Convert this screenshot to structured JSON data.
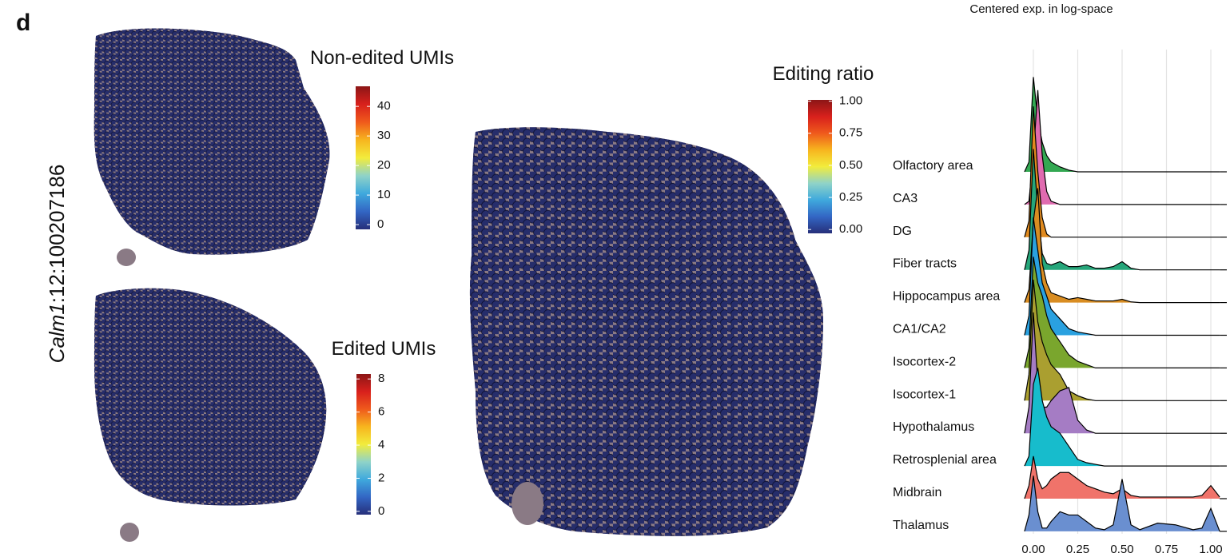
{
  "panel_label": "d",
  "y_label": {
    "gene": "Calm1",
    "locus": ":12:100207186"
  },
  "colormap": [
    "#262f7a",
    "#3366c4",
    "#3fa9dd",
    "#8fd3c8",
    "#f2ec3c",
    "#f7b51e",
    "#ef5a1c",
    "#d8201c",
    "#8c1616"
  ],
  "chart_data": [
    {
      "type": "spatial",
      "title": "Non-edited UMIs",
      "colorbar_lim": [
        -1.6,
        46.8
      ],
      "colorbar_ticks": [
        0,
        10,
        20,
        30,
        40
      ]
    },
    {
      "type": "spatial",
      "title": "Edited UMIs",
      "colorbar_lim": [
        -0.2,
        8.3
      ],
      "colorbar_ticks": [
        0,
        2,
        4,
        6,
        8
      ]
    },
    {
      "type": "spatial",
      "title": "Editing ratio",
      "colorbar_lim": [
        -0.03,
        1.01
      ],
      "colorbar_ticks": [
        {
          "value": 0,
          "label": "0.00"
        },
        {
          "value": 0.25,
          "label": "0.25"
        },
        {
          "value": 0.5,
          "label": "0.50"
        },
        {
          "value": 0.75,
          "label": "0.75"
        },
        {
          "value": 1,
          "label": "1.00"
        }
      ]
    },
    {
      "type": "ridgeline",
      "title": "Centered exp. in log-space",
      "x": [
        -0.05,
        -0.025,
        0,
        0.025,
        0.05,
        0.075,
        0.1,
        0.15,
        0.2,
        0.25,
        0.3,
        0.35,
        0.4,
        0.45,
        0.5,
        0.55,
        0.6,
        0.7,
        0.8,
        0.9,
        0.95,
        1.0,
        1.05
      ],
      "xlim": [
        -0.09,
        1.09
      ],
      "xticks": [
        {
          "value": 0,
          "label": "0.00"
        },
        {
          "value": 0.25,
          "label": "0.25"
        },
        {
          "value": 0.5,
          "label": "0.50"
        },
        {
          "value": 0.75,
          "label": "0.75"
        },
        {
          "value": 1,
          "label": "1.00"
        }
      ],
      "grid": true,
      "series": [
        {
          "name": "Olfactory area",
          "color": "#33a852",
          "values": [
            0,
            0.3,
            2.9,
            1.6,
            0.9,
            0.5,
            0.3,
            0.15,
            0.05,
            0,
            0,
            0,
            0,
            0,
            0,
            0,
            0,
            0,
            0,
            0,
            0,
            0,
            0
          ]
        },
        {
          "name": "CA3",
          "color": "#e06bb0",
          "values": [
            0,
            0.1,
            1.5,
            3.5,
            1.5,
            0.4,
            0.1,
            0,
            0,
            0,
            0,
            0,
            0,
            0,
            0,
            0,
            0,
            0,
            0,
            0,
            0,
            0,
            0
          ]
        },
        {
          "name": "DG",
          "color": "#e08a1e",
          "values": [
            0,
            0.5,
            4.0,
            2.0,
            0.6,
            0.1,
            0,
            0,
            0,
            0,
            0,
            0,
            0,
            0,
            0,
            0,
            0,
            0,
            0,
            0,
            0,
            0,
            0
          ]
        },
        {
          "name": "Fiber tracts",
          "color": "#26a67a",
          "values": [
            0,
            0.6,
            3.7,
            1.8,
            0.5,
            0.2,
            0.15,
            0.25,
            0.1,
            0.1,
            0.15,
            0.05,
            0.05,
            0.1,
            0.25,
            0.05,
            0,
            0,
            0,
            0,
            0,
            0,
            0
          ]
        },
        {
          "name": "Hippocampus area",
          "color": "#d98d22",
          "values": [
            0,
            0.4,
            2.5,
            3.5,
            1.2,
            0.6,
            0.3,
            0.2,
            0.1,
            0.15,
            0.1,
            0.05,
            0.05,
            0.05,
            0.1,
            0.02,
            0,
            0,
            0,
            0,
            0,
            0,
            0
          ]
        },
        {
          "name": "CA1/CA2",
          "color": "#2aa1e0",
          "values": [
            0,
            0.6,
            3.6,
            2.6,
            1.6,
            1.2,
            0.8,
            0.5,
            0.2,
            0.1,
            0.05,
            0,
            0,
            0,
            0,
            0,
            0,
            0,
            0,
            0,
            0,
            0,
            0
          ]
        },
        {
          "name": "Isocortex-2",
          "color": "#7aa62d",
          "values": [
            0,
            0.6,
            3.4,
            2.6,
            2.2,
            1.6,
            1.2,
            0.8,
            0.4,
            0.2,
            0.1,
            0,
            0,
            0,
            0,
            0,
            0,
            0,
            0,
            0,
            0,
            0,
            0
          ]
        },
        {
          "name": "Isocortex-1",
          "color": "#aa9f30",
          "values": [
            0,
            0.8,
            3.7,
            2.4,
            1.8,
            1.4,
            1.1,
            0.8,
            0.3,
            0.15,
            0.05,
            0,
            0,
            0,
            0,
            0,
            0,
            0,
            0,
            0,
            0,
            0,
            0
          ]
        },
        {
          "name": "Hypothalamus",
          "color": "#a57cc4",
          "values": [
            0,
            0.8,
            3.7,
            1.5,
            0.8,
            0.8,
            1.0,
            1.3,
            1.4,
            0.4,
            0.1,
            0,
            0,
            0,
            0,
            0,
            0,
            0,
            0,
            0,
            0,
            0,
            0
          ]
        },
        {
          "name": "Retrosplenial area",
          "color": "#17bccc",
          "values": [
            0,
            0.3,
            2.5,
            3.0,
            2.0,
            1.5,
            1.2,
            1.0,
            0.6,
            0.2,
            0.1,
            0.05,
            0,
            0,
            0,
            0,
            0,
            0,
            0,
            0,
            0,
            0,
            0
          ]
        },
        {
          "name": "Midbrain",
          "color": "#f0736a",
          "values": [
            0,
            0.4,
            1.3,
            0.6,
            0.3,
            0.4,
            0.6,
            0.8,
            0.8,
            0.6,
            0.4,
            0.3,
            0.2,
            0.15,
            0.3,
            0.1,
            0.05,
            0.05,
            0.05,
            0.05,
            0.1,
            0.4,
            0.05
          ]
        },
        {
          "name": "Thalamus",
          "color": "#6a8fd0",
          "values": [
            0,
            0.5,
            1.7,
            0.6,
            0.1,
            0.1,
            0.3,
            0.6,
            0.5,
            0.5,
            0.3,
            0.1,
            0.05,
            0.2,
            1.6,
            0.2,
            0.05,
            0.25,
            0.2,
            0.05,
            0.1,
            0.7,
            0
          ]
        }
      ]
    }
  ]
}
